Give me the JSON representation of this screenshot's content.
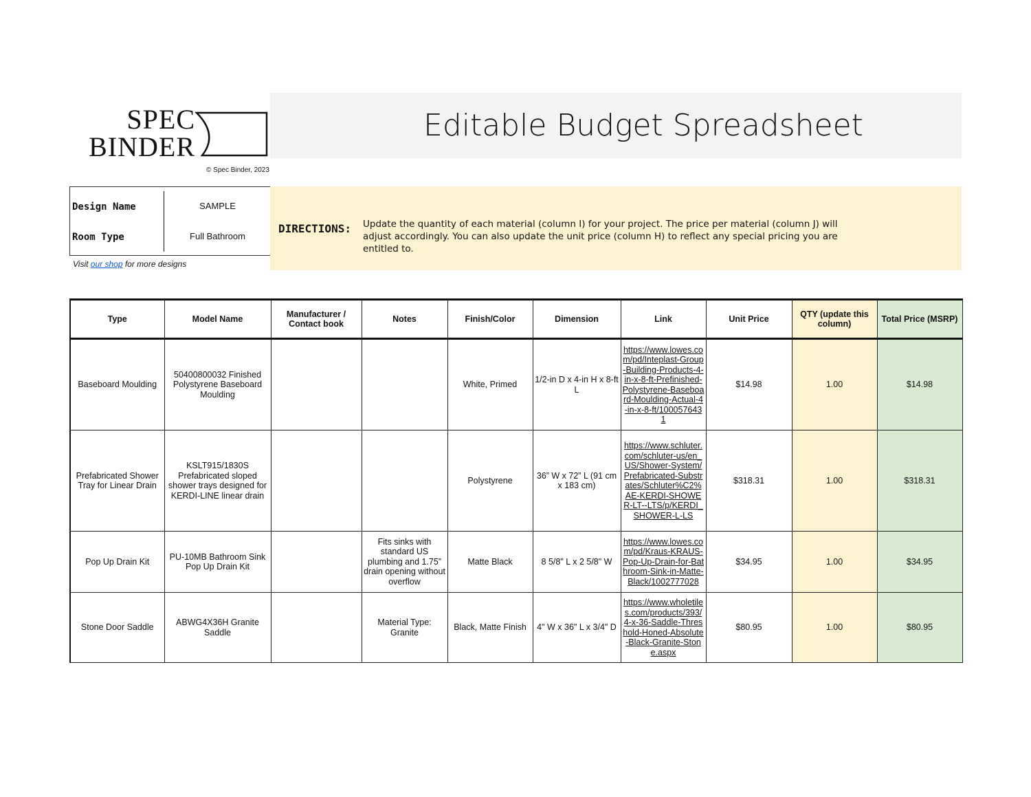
{
  "logo": {
    "line1": "SPEC",
    "line2": "BINDER"
  },
  "copyright": "© Spec Binder, 2023",
  "title": "Editable Budget Spreadsheet",
  "info": {
    "design_name_label": "Design Name",
    "design_name": "SAMPLE",
    "room_type_label": "Room Type",
    "room_type": "Full Bathroom"
  },
  "shop": {
    "prefix": "Visit",
    "link": "our shop",
    "suffix": "for more designs"
  },
  "directions": {
    "label": "DIRECTIONS:",
    "text": "Update the quantity of each material (column I) for your project. The price per material (column J) will adjust accordingly. You can also update the unit price (column H) to reflect any special pricing you are entitled to."
  },
  "colors": {
    "title_bg": "#f3f3f3",
    "directions_bg": "#fdf3d0",
    "qty_bg": "#fdf3d0",
    "total_bg": "#d9ead3",
    "link": "#1155cc"
  },
  "table": {
    "headers": [
      "Type",
      "Model Name",
      "Manufacturer / Contact book",
      "Notes",
      "Finish/Color",
      "Dimension",
      "Link",
      "Unit Price",
      "QTY (update this column)",
      "Total Price (MSRP)"
    ],
    "rows": [
      {
        "type": "Baseboard Moulding",
        "model": "50400800032 Finished Polystyrene Baseboard Moulding",
        "manufacturer": "",
        "notes": "",
        "finish": "White, Primed",
        "dimension": "1/2-in D x 4-in H x 8-ft L",
        "link": "https://www.lowes.com/pd/Inteplast-Group-Building-Products-4-in-x-8-ft-Prefinished-Polystyrene-Baseboard-Moulding-Actual-4-in-x-8-ft/1000576431",
        "unit_price": "$14.98",
        "qty": "1.00",
        "total": "$14.98"
      },
      {
        "type": "Prefabricated Shower Tray for Linear Drain",
        "model": "KSLT915/1830S Prefabricated sloped shower trays designed for KERDI-LINE linear drain",
        "manufacturer": "",
        "notes": "",
        "finish": "Polystyrene",
        "dimension": "36” W x 72” L (91 cm x 183 cm)",
        "link": "https://www.schluter.com/schluter-us/en_US/Shower-System/Prefabricated-Substrates/Schluter%C2%AE-KERDI-SHOWER-LT--LTS/p/KERDI_SHOWER-L-LS",
        "unit_price": "$318.31",
        "qty": "1.00",
        "total": "$318.31"
      },
      {
        "type": "Pop Up Drain Kit",
        "model": "PU-10MB Bathroom Sink Pop Up Drain Kit",
        "manufacturer": "",
        "notes": "Fits sinks with standard US plumbing and 1.75” drain opening without overflow",
        "finish": "Matte Black",
        "dimension": "8 5/8\" L x 2 5/8\" W",
        "link": "https://www.lowes.com/pd/Kraus-KRAUS-Pop-Up-Drain-for-Bathroom-Sink-in-Matte-Black/1002777028",
        "unit_price": "$34.95",
        "qty": "1.00",
        "total": "$34.95"
      },
      {
        "type": "Stone Door Saddle",
        "model": "ABWG4X36H Granite Saddle",
        "manufacturer": "",
        "notes": "Material Type: Granite",
        "finish": "Black, Matte Finish",
        "dimension": "4\" W x 36\" L x 3/4\" D",
        "link": "https://www.wholetiles.com/products/393/4-x-36-Saddle-Threshold-Honed-Absolute-Black-Granite-Stone.aspx",
        "unit_price": "$80.95",
        "qty": "1.00",
        "total": "$80.95"
      }
    ]
  }
}
